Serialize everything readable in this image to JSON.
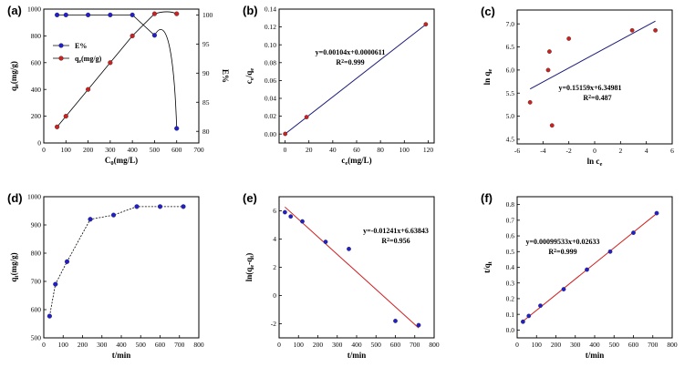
{
  "chart_data": [
    {
      "type": "line",
      "label": "(a)",
      "xlabel": "C0(mg/L)",
      "ylabel": "qe(mg/g)",
      "y2label": "E%",
      "xlim": [
        0,
        700
      ],
      "ylim": [
        0,
        1000
      ],
      "y2lim": [
        78,
        101
      ],
      "xticks": [
        "0",
        "100",
        "200",
        "300",
        "400",
        "500",
        "600",
        "700"
      ],
      "yticks": [
        "0",
        "200",
        "400",
        "600",
        "800",
        "1000"
      ],
      "y2ticks": [
        "80",
        "85",
        "90",
        "95",
        "100"
      ],
      "legend": [
        "E%",
        "qe(mg/g)"
      ],
      "legend_position": "top-left",
      "series": [
        {
          "name": "E%",
          "axis": "right",
          "color": "#1f1fd0",
          "x": [
            60,
            100,
            200,
            300,
            400,
            500,
            600
          ],
          "y": [
            100,
            100,
            100,
            100,
            100,
            96.5,
            80.5
          ]
        },
        {
          "name": "qe(mg/g)",
          "axis": "left",
          "color": "#d01f1f",
          "x": [
            60,
            100,
            200,
            300,
            400,
            500,
            600
          ],
          "y": [
            120,
            200,
            400,
            600,
            800,
            965,
            965
          ]
        }
      ]
    },
    {
      "type": "scatter",
      "label": "(b)",
      "xlabel": "ce(mg/L)",
      "ylabel": "ce/qe",
      "xlim": [
        -5,
        125
      ],
      "ylim": [
        -0.01,
        0.14
      ],
      "xticks": [
        "0",
        "20",
        "40",
        "60",
        "80",
        "100",
        "120"
      ],
      "yticks": [
        "0.00",
        "0.02",
        "0.04",
        "0.06",
        "0.08",
        "0.10",
        "0.12",
        "0.14"
      ],
      "points": {
        "x": [
          0.1,
          18,
          118
        ],
        "y": [
          0.0002,
          0.019,
          0.123
        ]
      },
      "fit": {
        "x": [
          0,
          118
        ],
        "y": [
          6.11e-05,
          0.1228
        ]
      },
      "equation": "y=0.00104x+0.0000611",
      "r2": "R2=0.999"
    },
    {
      "type": "scatter",
      "label": "(c)",
      "xlabel": "ln ce",
      "ylabel": "ln qe",
      "xlim": [
        -6,
        6
      ],
      "ylim": [
        4.4,
        7.3
      ],
      "xticks": [
        "-6",
        "-4",
        "-2",
        "0",
        "2",
        "4",
        "6"
      ],
      "yticks": [
        "4.5",
        "5.0",
        "5.5",
        "6.0",
        "6.5",
        "7.0"
      ],
      "points": {
        "x": [
          -5,
          -3.6,
          -3.5,
          -3.3,
          -2,
          2.9,
          4.7
        ],
        "y": [
          5.3,
          6.0,
          6.4,
          4.8,
          6.68,
          6.86,
          6.86
        ]
      },
      "fit": {
        "x": [
          -5,
          4.7
        ],
        "y": [
          5.59,
          7.06
        ]
      },
      "equation": "y=0.15159x+6.34981",
      "r2": "R2=0.487"
    },
    {
      "type": "line",
      "label": "(d)",
      "xlabel": "t/min",
      "ylabel": "qt(mg/g)",
      "xlim": [
        0,
        800
      ],
      "ylim": [
        500,
        1000
      ],
      "xticks": [
        "0",
        "100",
        "200",
        "300",
        "400",
        "500",
        "600",
        "700",
        "800"
      ],
      "yticks": [
        "500",
        "600",
        "700",
        "800",
        "900",
        "1000"
      ],
      "series": [
        {
          "name": "qt",
          "color": "#1f1fd0",
          "x": [
            30,
            60,
            120,
            240,
            360,
            480,
            600,
            720
          ],
          "y": [
            577,
            690,
            770,
            920,
            935,
            965,
            965,
            965
          ]
        }
      ]
    },
    {
      "type": "scatter",
      "label": "(e)",
      "xlabel": "t/min",
      "ylabel": "ln(qe-qt)",
      "xlim": [
        0,
        800
      ],
      "ylim": [
        -3,
        7
      ],
      "xticks": [
        "0",
        "100",
        "200",
        "300",
        "400",
        "500",
        "600",
        "700",
        "800"
      ],
      "yticks": [
        "-2",
        "0",
        "2",
        "4",
        "6"
      ],
      "points": {
        "x": [
          30,
          60,
          120,
          240,
          360,
          600,
          720
        ],
        "y": [
          5.9,
          5.6,
          5.25,
          3.8,
          3.3,
          -1.8,
          -2.1
        ]
      },
      "fit": {
        "x": [
          30,
          720
        ],
        "y": [
          6.27,
          -2.3
        ]
      },
      "equation": "y=-0.01241x+6.63843",
      "r2": "R2=0.956"
    },
    {
      "type": "scatter",
      "label": "(f)",
      "xlabel": "t/min",
      "ylabel": "t/qt",
      "xlim": [
        0,
        800
      ],
      "ylim": [
        -0.05,
        0.85
      ],
      "xticks": [
        "0",
        "100",
        "200",
        "300",
        "400",
        "500",
        "600",
        "700",
        "800"
      ],
      "yticks": [
        "0.0",
        "0.1",
        "0.2",
        "0.3",
        "0.4",
        "0.5",
        "0.6",
        "0.7",
        "0.8"
      ],
      "points": {
        "x": [
          30,
          60,
          120,
          240,
          360,
          480,
          600,
          720
        ],
        "y": [
          0.053,
          0.09,
          0.155,
          0.26,
          0.385,
          0.5,
          0.62,
          0.745
        ]
      },
      "fit": {
        "x": [
          30,
          720
        ],
        "y": [
          0.0562,
          0.7429
        ]
      },
      "equation": "y=0.00099533x+0.02633",
      "r2": "R2=0.999"
    }
  ]
}
